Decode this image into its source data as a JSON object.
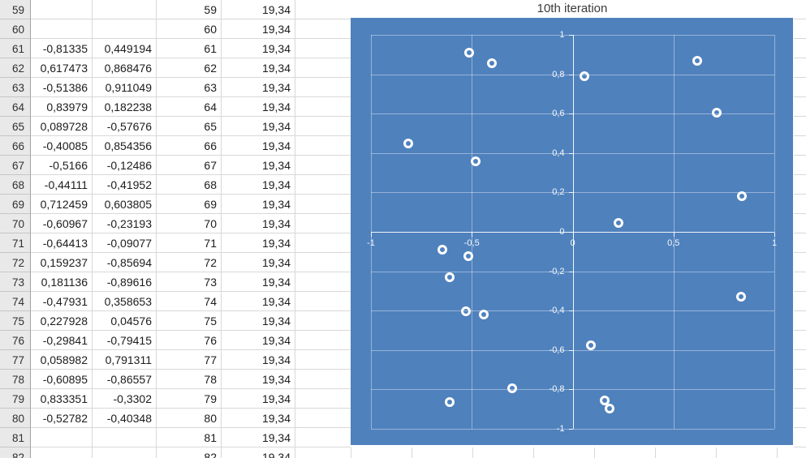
{
  "sheet": {
    "visible_row_range": "59-82",
    "columns": [
      "row-header",
      "col-b",
      "col-c",
      "col-d",
      "col-e"
    ],
    "rows": [
      {
        "n": "59",
        "b": "",
        "c": "",
        "d": "59",
        "e": "19,34"
      },
      {
        "n": "60",
        "b": "",
        "c": "",
        "d": "60",
        "e": "19,34"
      },
      {
        "n": "61",
        "b": "-0,81335",
        "c": "0,449194",
        "d": "61",
        "e": "19,34"
      },
      {
        "n": "62",
        "b": "0,617473",
        "c": "0,868476",
        "d": "62",
        "e": "19,34"
      },
      {
        "n": "63",
        "b": "-0,51386",
        "c": "0,911049",
        "d": "63",
        "e": "19,34"
      },
      {
        "n": "64",
        "b": "0,83979",
        "c": "0,182238",
        "d": "64",
        "e": "19,34"
      },
      {
        "n": "65",
        "b": "0,089728",
        "c": "-0,57676",
        "d": "65",
        "e": "19,34"
      },
      {
        "n": "66",
        "b": "-0,40085",
        "c": "0,854356",
        "d": "66",
        "e": "19,34"
      },
      {
        "n": "67",
        "b": "-0,5166",
        "c": "-0,12486",
        "d": "67",
        "e": "19,34"
      },
      {
        "n": "68",
        "b": "-0,44111",
        "c": "-0,41952",
        "d": "68",
        "e": "19,34"
      },
      {
        "n": "69",
        "b": "0,712459",
        "c": "0,603805",
        "d": "69",
        "e": "19,34"
      },
      {
        "n": "70",
        "b": "-0,60967",
        "c": "-0,23193",
        "d": "70",
        "e": "19,34"
      },
      {
        "n": "71",
        "b": "-0,64413",
        "c": "-0,09077",
        "d": "71",
        "e": "19,34"
      },
      {
        "n": "72",
        "b": "0,159237",
        "c": "-0,85694",
        "d": "72",
        "e": "19,34"
      },
      {
        "n": "73",
        "b": "0,181136",
        "c": "-0,89616",
        "d": "73",
        "e": "19,34"
      },
      {
        "n": "74",
        "b": "-0,47931",
        "c": "0,358653",
        "d": "74",
        "e": "19,34"
      },
      {
        "n": "75",
        "b": "0,227928",
        "c": "0,04576",
        "d": "75",
        "e": "19,34"
      },
      {
        "n": "76",
        "b": "-0,29841",
        "c": "-0,79415",
        "d": "76",
        "e": "19,34"
      },
      {
        "n": "77",
        "b": "0,058982",
        "c": "0,791311",
        "d": "77",
        "e": "19,34"
      },
      {
        "n": "78",
        "b": "-0,60895",
        "c": "-0,86557",
        "d": "78",
        "e": "19,34"
      },
      {
        "n": "79",
        "b": "0,833351",
        "c": "-0,3302",
        "d": "79",
        "e": "19,34"
      },
      {
        "n": "80",
        "b": "-0,52782",
        "c": "-0,40348",
        "d": "80",
        "e": "19,34"
      },
      {
        "n": "81",
        "b": "",
        "c": "",
        "d": "81",
        "e": "19,34"
      },
      {
        "n": "82",
        "b": "",
        "c": "",
        "d": "82",
        "e": "19,34"
      }
    ]
  },
  "chart_data": {
    "type": "scatter",
    "title": "10th iteration",
    "xlabel": "",
    "ylabel": "",
    "xlim": [
      -1,
      1
    ],
    "ylim": [
      -1,
      1
    ],
    "x_tick_labels": [
      "-1",
      "-0,5",
      "0",
      "0,5",
      "1"
    ],
    "y_tick_labels": [
      "1",
      "0,8",
      "0,6",
      "0,4",
      "0,2",
      "0",
      "-0,2",
      "-0,4",
      "-0,6",
      "-0,8",
      "-1"
    ],
    "grid": true,
    "legend_position": "none",
    "marker_style": "open-circle",
    "points": [
      [
        -0.81335,
        0.449194
      ],
      [
        0.617473,
        0.868476
      ],
      [
        -0.51386,
        0.911049
      ],
      [
        0.83979,
        0.182238
      ],
      [
        0.089728,
        -0.57676
      ],
      [
        -0.40085,
        0.854356
      ],
      [
        -0.5166,
        -0.12486
      ],
      [
        -0.44111,
        -0.41952
      ],
      [
        0.712459,
        0.603805
      ],
      [
        -0.60967,
        -0.23193
      ],
      [
        -0.64413,
        -0.09077
      ],
      [
        0.159237,
        -0.85694
      ],
      [
        0.181136,
        -0.89616
      ],
      [
        -0.47931,
        0.358653
      ],
      [
        0.227928,
        0.04576
      ],
      [
        -0.29841,
        -0.79415
      ],
      [
        0.058982,
        0.791311
      ],
      [
        -0.60895,
        -0.86557
      ],
      [
        0.833351,
        -0.3302
      ],
      [
        -0.52782,
        -0.40348
      ]
    ]
  },
  "colors": {
    "plot_bg": "#4F81BD",
    "gridline": "rgba(255,255,255,0.40)",
    "axis_line": "rgba(255,255,255,0.85)",
    "tick_label": "rgba(255,255,255,0.95)",
    "marker": "#FFFFFF",
    "sheet_gridline": "#d8d8d8",
    "rowheader_bg": "#e9e9e9"
  }
}
